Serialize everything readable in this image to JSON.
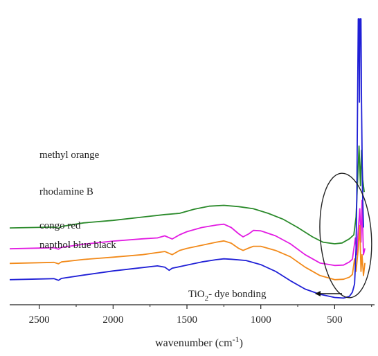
{
  "chart_data": {
    "type": "line",
    "xlabel": "wavenumber (cm",
    "xlabel_sup": "-1",
    "x_reversed": true,
    "xlim": [
      2700,
      230
    ],
    "xticks": [
      2500,
      2000,
      1500,
      1000,
      500
    ],
    "xtick_labels": [
      "2500",
      "2000",
      "1500",
      "1000",
      "500"
    ],
    "y_axis_visible": false,
    "grid": false,
    "annotation": {
      "text_main": "TiO",
      "text_sub": "2",
      "text_rest": "- dye bonding",
      "arrow_direction": "left",
      "ellipse_center_x": 425
    },
    "series": [
      {
        "name": "methyl orange",
        "color": "#2a8a2a",
        "points": [
          [
            2700,
            0.248
          ],
          [
            2400,
            0.252
          ],
          [
            2370,
            0.246
          ],
          [
            2350,
            0.255
          ],
          [
            2200,
            0.272
          ],
          [
            2000,
            0.284
          ],
          [
            1800,
            0.3
          ],
          [
            1650,
            0.312
          ],
          [
            1550,
            0.318
          ],
          [
            1450,
            0.338
          ],
          [
            1350,
            0.352
          ],
          [
            1250,
            0.356
          ],
          [
            1150,
            0.35
          ],
          [
            1050,
            0.34
          ],
          [
            950,
            0.318
          ],
          [
            850,
            0.29
          ],
          [
            750,
            0.25
          ],
          [
            650,
            0.205
          ],
          [
            580,
            0.18
          ],
          [
            500,
            0.172
          ],
          [
            450,
            0.176
          ],
          [
            400,
            0.196
          ],
          [
            370,
            0.215
          ],
          [
            355,
            0.3
          ],
          [
            340,
            0.55
          ],
          [
            335,
            0.64
          ],
          [
            325,
            0.45
          ],
          [
            318,
            0.62
          ],
          [
            310,
            0.48
          ],
          [
            300,
            0.42
          ]
        ]
      },
      {
        "name": "rhodamine B",
        "color": "#e21be2",
        "points": [
          [
            2700,
            0.148
          ],
          [
            2400,
            0.153
          ],
          [
            2370,
            0.146
          ],
          [
            2350,
            0.155
          ],
          [
            2200,
            0.17
          ],
          [
            2000,
            0.185
          ],
          [
            1800,
            0.196
          ],
          [
            1700,
            0.2
          ],
          [
            1650,
            0.21
          ],
          [
            1600,
            0.195
          ],
          [
            1550,
            0.215
          ],
          [
            1500,
            0.23
          ],
          [
            1400,
            0.25
          ],
          [
            1300,
            0.262
          ],
          [
            1250,
            0.266
          ],
          [
            1200,
            0.25
          ],
          [
            1150,
            0.22
          ],
          [
            1120,
            0.205
          ],
          [
            1080,
            0.22
          ],
          [
            1050,
            0.236
          ],
          [
            1000,
            0.234
          ],
          [
            900,
            0.21
          ],
          [
            800,
            0.172
          ],
          [
            700,
            0.12
          ],
          [
            600,
            0.08
          ],
          [
            500,
            0.068
          ],
          [
            440,
            0.07
          ],
          [
            400,
            0.085
          ],
          [
            380,
            0.098
          ],
          [
            360,
            0.2
          ],
          [
            350,
            0.12
          ],
          [
            340,
            0.24
          ],
          [
            330,
            0.34
          ],
          [
            322,
            0.18
          ],
          [
            315,
            0.38
          ],
          [
            305,
            0.12
          ],
          [
            295,
            0.15
          ]
        ]
      },
      {
        "name": "congo red",
        "color": "#f28a1a",
        "points": [
          [
            2700,
            0.078
          ],
          [
            2400,
            0.083
          ],
          [
            2370,
            0.076
          ],
          [
            2350,
            0.085
          ],
          [
            2200,
            0.097
          ],
          [
            2000,
            0.108
          ],
          [
            1800,
            0.12
          ],
          [
            1700,
            0.13
          ],
          [
            1650,
            0.135
          ],
          [
            1600,
            0.12
          ],
          [
            1550,
            0.14
          ],
          [
            1500,
            0.15
          ],
          [
            1400,
            0.165
          ],
          [
            1300,
            0.18
          ],
          [
            1250,
            0.186
          ],
          [
            1200,
            0.175
          ],
          [
            1150,
            0.15
          ],
          [
            1120,
            0.14
          ],
          [
            1080,
            0.152
          ],
          [
            1050,
            0.16
          ],
          [
            1000,
            0.16
          ],
          [
            900,
            0.14
          ],
          [
            800,
            0.11
          ],
          [
            700,
            0.06
          ],
          [
            600,
            0.02
          ],
          [
            500,
            0.0
          ],
          [
            440,
            0.002
          ],
          [
            400,
            0.012
          ],
          [
            380,
            0.025
          ],
          [
            365,
            0.1
          ],
          [
            355,
            0.04
          ],
          [
            340,
            0.15
          ],
          [
            330,
            0.26
          ],
          [
            322,
            0.04
          ],
          [
            315,
            0.12
          ],
          [
            305,
            0.02
          ],
          [
            295,
            0.08
          ]
        ]
      },
      {
        "name": "napthol blue black",
        "color": "#1f1fd6",
        "points": [
          [
            2700,
            0.0
          ],
          [
            2400,
            0.005
          ],
          [
            2370,
            -0.003
          ],
          [
            2350,
            0.006
          ],
          [
            2200,
            0.022
          ],
          [
            2000,
            0.042
          ],
          [
            1800,
            0.058
          ],
          [
            1700,
            0.066
          ],
          [
            1650,
            0.06
          ],
          [
            1620,
            0.045
          ],
          [
            1600,
            0.055
          ],
          [
            1500,
            0.07
          ],
          [
            1400,
            0.085
          ],
          [
            1300,
            0.096
          ],
          [
            1250,
            0.1
          ],
          [
            1200,
            0.098
          ],
          [
            1100,
            0.092
          ],
          [
            1000,
            0.072
          ],
          [
            900,
            0.04
          ],
          [
            800,
            -0.005
          ],
          [
            700,
            -0.045
          ],
          [
            600,
            -0.07
          ],
          [
            500,
            -0.085
          ],
          [
            440,
            -0.088
          ],
          [
            400,
            -0.08
          ],
          [
            380,
            -0.06
          ],
          [
            365,
            -0.02
          ],
          [
            355,
            0.15
          ],
          [
            350,
            0.4
          ],
          [
            345,
            0.85
          ],
          [
            340,
            1.25
          ],
          [
            336,
            1.25
          ],
          [
            332,
            0.85
          ],
          [
            328,
            1.25
          ],
          [
            322,
            1.25
          ],
          [
            318,
            0.85
          ],
          [
            312,
            0.45
          ],
          [
            305,
            0.25
          ]
        ]
      }
    ]
  }
}
